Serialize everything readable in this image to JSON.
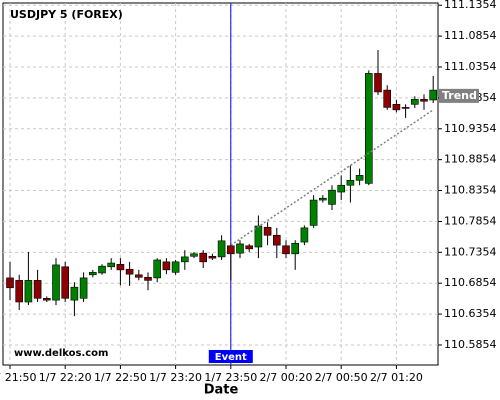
{
  "chart_data": {
    "type": "candlestick",
    "title": "USDJPY 5 (FOREX)",
    "watermark": "www.delkos.com",
    "x_label": "Date",
    "categories": [
      "1/7 21:50",
      null,
      null,
      null,
      null,
      null,
      "1/7 22:20",
      null,
      null,
      null,
      null,
      null,
      "1/7 22:50",
      null,
      null,
      null,
      null,
      null,
      "1/7 23:20",
      null,
      null,
      null,
      null,
      null,
      "1/7 23:50",
      null,
      null,
      null,
      null,
      null,
      "2/7 00:20",
      null,
      null,
      null,
      null,
      null,
      "2/7 00:50",
      null,
      null,
      null,
      null,
      null,
      "2/7 01:20",
      null,
      null,
      null,
      null
    ],
    "open": [
      110.694,
      110.69,
      110.655,
      110.69,
      110.661,
      110.658,
      110.712,
      110.658,
      110.661,
      110.699,
      110.702,
      110.712,
      110.716,
      110.708,
      110.699,
      110.695,
      110.694,
      110.72,
      110.703,
      110.72,
      110.729,
      110.734,
      110.729,
      110.728,
      110.746,
      110.734,
      110.746,
      110.744,
      110.776,
      110.763,
      110.746,
      110.733,
      110.752,
      110.779,
      110.82,
      110.813,
      110.833,
      110.844,
      110.852,
      110.847,
      111.025,
      110.998,
      110.975,
      110.97,
      110.975,
      110.983,
      110.982
    ],
    "high": [
      110.72,
      110.699,
      110.736,
      110.707,
      110.664,
      110.726,
      110.72,
      110.687,
      110.703,
      110.707,
      110.716,
      110.726,
      110.726,
      110.72,
      110.707,
      110.703,
      110.726,
      110.726,
      110.723,
      110.739,
      110.736,
      110.739,
      110.733,
      110.763,
      110.749,
      110.755,
      110.749,
      110.795,
      110.784,
      110.775,
      110.755,
      110.755,
      110.779,
      110.828,
      110.828,
      110.844,
      110.86,
      110.876,
      110.871,
      111.03,
      111.063,
      111.006,
      110.982,
      110.975,
      110.988,
      110.991,
      111.021
    ],
    "low": [
      110.658,
      110.642,
      110.65,
      110.655,
      110.655,
      110.65,
      110.655,
      110.632,
      110.655,
      110.695,
      110.699,
      110.707,
      110.682,
      110.681,
      110.69,
      110.674,
      110.687,
      110.7,
      110.699,
      110.707,
      110.726,
      110.71,
      110.723,
      110.723,
      110.69,
      110.726,
      110.736,
      110.726,
      110.747,
      110.726,
      110.726,
      110.707,
      110.747,
      110.775,
      110.816,
      110.804,
      110.82,
      110.816,
      110.844,
      110.844,
      110.99,
      110.966,
      110.962,
      110.953,
      110.969,
      110.966,
      110.977
    ],
    "close": [
      110.678,
      110.655,
      110.69,
      110.661,
      110.658,
      110.715,
      110.661,
      110.679,
      110.694,
      110.703,
      110.713,
      110.718,
      110.707,
      110.7,
      110.695,
      110.69,
      110.723,
      110.707,
      110.72,
      110.728,
      110.733,
      110.72,
      110.726,
      110.754,
      110.733,
      110.749,
      110.741,
      110.778,
      110.763,
      110.747,
      110.733,
      110.75,
      110.775,
      110.82,
      110.823,
      110.836,
      110.844,
      110.852,
      110.86,
      111.025,
      110.995,
      110.97,
      110.966,
      110.969,
      110.983,
      110.98,
      110.998
    ],
    "up_color": "#008000",
    "down_color": "#8b0000",
    "trend": {
      "label": "Trend",
      "color": "#808080",
      "values": [
        null,
        null,
        null,
        null,
        null,
        null,
        null,
        null,
        null,
        null,
        null,
        null,
        null,
        null,
        null,
        null,
        null,
        null,
        null,
        null,
        null,
        null,
        null,
        null,
        110.747,
        110.757,
        110.767,
        110.777,
        110.787,
        110.797,
        110.807,
        110.817,
        110.827,
        110.837,
        110.847,
        110.857,
        110.866,
        110.876,
        110.886,
        110.896,
        110.906,
        110.916,
        110.926,
        110.936,
        110.946,
        110.956,
        110.966
      ]
    },
    "event": {
      "label": "Event",
      "category": "1/7 23:50",
      "color": "#0000ff"
    },
    "ylim": [
      110.553,
      111.139
    ],
    "yticks": [
      110.5854,
      110.6354,
      110.6854,
      110.7354,
      110.7854,
      110.8354,
      110.8854,
      110.9354,
      110.9854,
      111.0354,
      111.0854,
      111.1354
    ],
    "grid": true
  }
}
